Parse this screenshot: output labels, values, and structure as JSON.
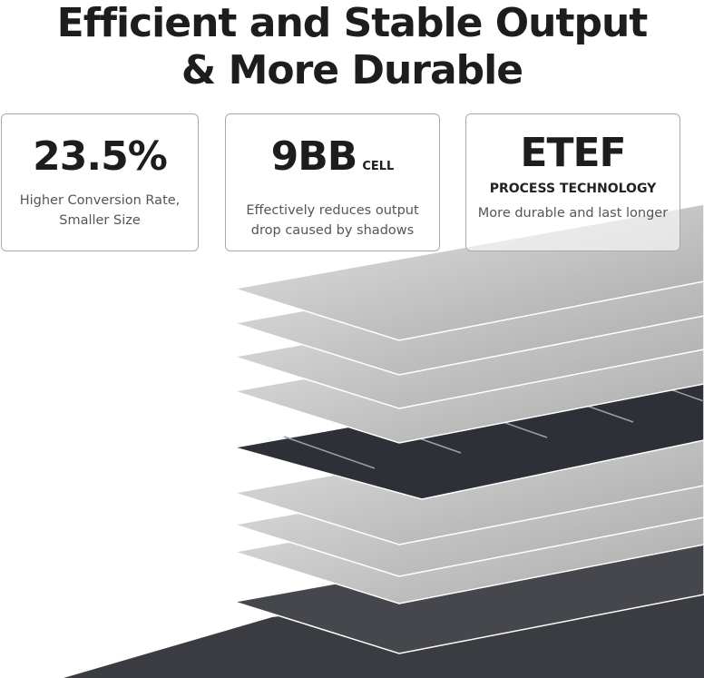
{
  "headline": {
    "line1": "Efficient and Stable Output",
    "line2": "& More Durable"
  },
  "features": [
    {
      "value": "23.5%",
      "suffix": "",
      "subtitle": "",
      "desc1": "Higher Conversion Rate,",
      "desc2": "Smaller Size"
    },
    {
      "value": "9BB",
      "suffix": "CELL",
      "subtitle": "",
      "desc1": "Effectively reduces output",
      "desc2": "drop caused by shadows"
    },
    {
      "value": "ETEF",
      "suffix": "",
      "subtitle": "PROCESS TECHNOLOGY",
      "desc1": "More durable and last longer",
      "desc2": ""
    }
  ],
  "colors": {
    "text": "#1d1d1f",
    "sheet": "#d2d2d2",
    "cell": "#2e3038"
  }
}
